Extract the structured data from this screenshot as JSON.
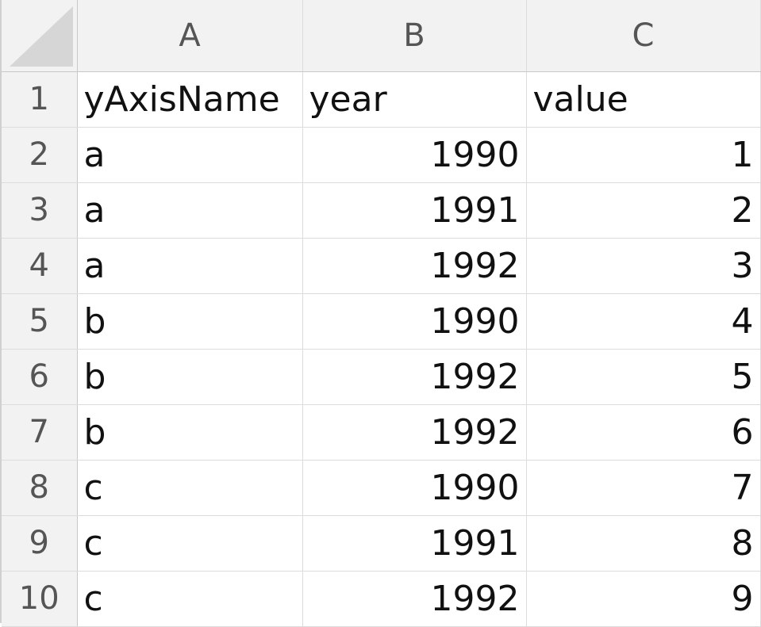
{
  "columns": [
    "A",
    "B",
    "C"
  ],
  "rows": [
    {
      "row": "1",
      "a": "yAxisName",
      "b": "year",
      "c": "value"
    },
    {
      "row": "2",
      "a": "a",
      "b": "1990",
      "c": "1"
    },
    {
      "row": "3",
      "a": "a",
      "b": "1991",
      "c": "2"
    },
    {
      "row": "4",
      "a": "a",
      "b": "1992",
      "c": "3"
    },
    {
      "row": "5",
      "a": "b",
      "b": "1990",
      "c": "4"
    },
    {
      "row": "6",
      "a": "b",
      "b": "1992",
      "c": "5"
    },
    {
      "row": "7",
      "a": "b",
      "b": "1992",
      "c": "6"
    },
    {
      "row": "8",
      "a": "c",
      "b": "1990",
      "c": "7"
    },
    {
      "row": "9",
      "a": "c",
      "b": "1991",
      "c": "8"
    },
    {
      "row": "10",
      "a": "c",
      "b": "1992",
      "c": "9"
    }
  ]
}
